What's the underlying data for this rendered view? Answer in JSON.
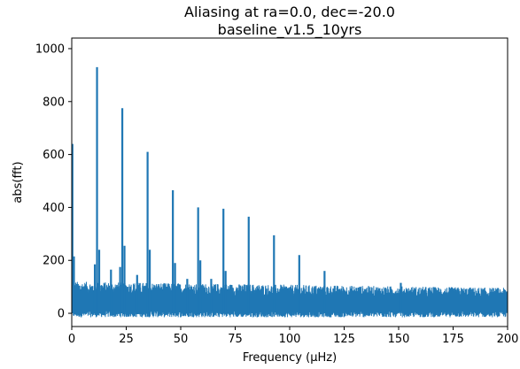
{
  "chart_data": {
    "type": "line",
    "title": "Aliasing at ra=0.0, dec=-20.0",
    "subtitle": "baseline_v1.5_10yrs",
    "xlabel": "Frequency (μHz)",
    "ylabel": "abs(fft)",
    "xlim": [
      0,
      200
    ],
    "ylim": [
      -50,
      1040
    ],
    "x_ticks": [
      "0",
      "25",
      "50",
      "75",
      "100",
      "125",
      "150",
      "175",
      "200"
    ],
    "y_ticks": [
      "0",
      "200",
      "400",
      "600",
      "800",
      "1000"
    ],
    "grid": false,
    "color": "#1f77b4",
    "series": [
      {
        "peaks": [
          {
            "x": 0.3,
            "y": 640
          },
          {
            "x": 1.0,
            "y": 215
          },
          {
            "x": 11.6,
            "y": 930
          },
          {
            "x": 10.6,
            "y": 185
          },
          {
            "x": 12.6,
            "y": 240
          },
          {
            "x": 18.0,
            "y": 165
          },
          {
            "x": 23.2,
            "y": 775
          },
          {
            "x": 24.2,
            "y": 255
          },
          {
            "x": 22.2,
            "y": 175
          },
          {
            "x": 30.0,
            "y": 145
          },
          {
            "x": 34.8,
            "y": 610
          },
          {
            "x": 35.8,
            "y": 240
          },
          {
            "x": 46.4,
            "y": 465
          },
          {
            "x": 47.4,
            "y": 190
          },
          {
            "x": 53.0,
            "y": 130
          },
          {
            "x": 58.0,
            "y": 400
          },
          {
            "x": 59.0,
            "y": 200
          },
          {
            "x": 64.0,
            "y": 130
          },
          {
            "x": 69.6,
            "y": 395
          },
          {
            "x": 70.6,
            "y": 160
          },
          {
            "x": 81.2,
            "y": 365
          },
          {
            "x": 92.8,
            "y": 295
          },
          {
            "x": 104.4,
            "y": 220
          },
          {
            "x": 116.0,
            "y": 160
          },
          {
            "x": 151.0,
            "y": 115
          }
        ]
      }
    ]
  }
}
